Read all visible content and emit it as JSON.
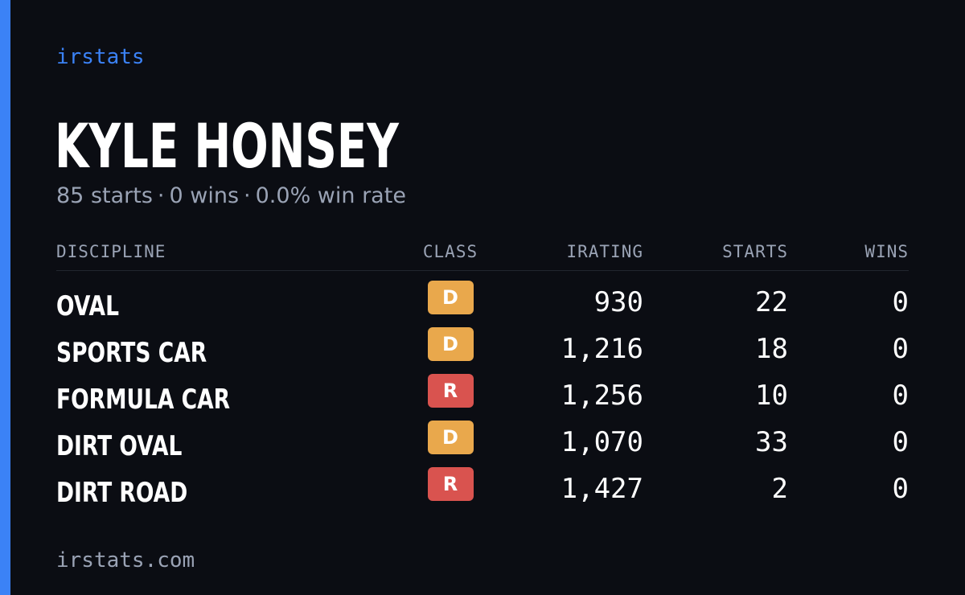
{
  "colors": {
    "accent": "#3b82f6",
    "class_D": "#e9a84c",
    "class_R": "#d9534f"
  },
  "brand": "irstats",
  "driver": {
    "name": "KYLE HONSEY",
    "starts": "85 starts",
    "wins": "0 wins",
    "win_rate": "0.0% win rate",
    "separator": "·"
  },
  "table": {
    "headers": {
      "discipline": "DISCIPLINE",
      "class": "CLASS",
      "irating": "IRATING",
      "starts": "STARTS",
      "wins": "WINS"
    },
    "rows": [
      {
        "discipline": "OVAL",
        "class": "D",
        "irating": "930",
        "starts": "22",
        "wins": "0"
      },
      {
        "discipline": "SPORTS CAR",
        "class": "D",
        "irating": "1,216",
        "starts": "18",
        "wins": "0"
      },
      {
        "discipline": "FORMULA CAR",
        "class": "R",
        "irating": "1,256",
        "starts": "10",
        "wins": "0"
      },
      {
        "discipline": "DIRT OVAL",
        "class": "D",
        "irating": "1,070",
        "starts": "33",
        "wins": "0"
      },
      {
        "discipline": "DIRT ROAD",
        "class": "R",
        "irating": "1,427",
        "starts": "2",
        "wins": "0"
      }
    ]
  },
  "footer": "irstats.com"
}
